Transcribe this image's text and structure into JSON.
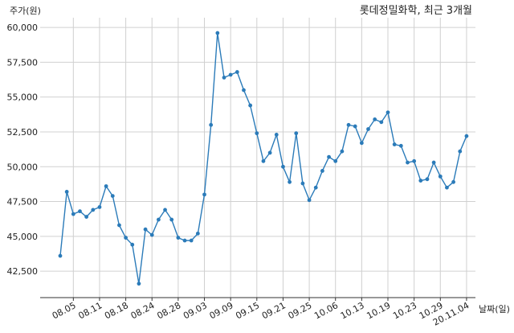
{
  "chart_data": {
    "type": "line",
    "title": "롯데정밀화학, 최근 3개월",
    "ylabel": "주가(원)",
    "xlabel": "날짜(일)",
    "ylim": [
      40600,
      60700
    ],
    "y_ticks": [
      42500,
      45000,
      47500,
      50000,
      52500,
      55000,
      57500,
      60000
    ],
    "y_tick_labels": [
      "42,500",
      "45,000",
      "47,500",
      "50,000",
      "52,500",
      "55,000",
      "57,500",
      "60,000"
    ],
    "x_tick_labels": [
      "08.05",
      "08.11",
      "08.18",
      "08.24",
      "08.28",
      "09.03",
      "09.09",
      "09.15",
      "09.21",
      "09.25",
      "10.06",
      "10.13",
      "10.19",
      "10.23",
      "10.29",
      "20.11.04"
    ],
    "x_tick_index": [
      2,
      6,
      10,
      14,
      18,
      22,
      26,
      30,
      34,
      38,
      42,
      46,
      50,
      54,
      58,
      62
    ],
    "grid": true,
    "color": "#2b7bb9",
    "series": [
      {
        "values": [
          43600,
          48200,
          46600,
          46800,
          46400,
          46900,
          47100,
          48600,
          47900,
          45800,
          44900,
          44400,
          41600,
          45500,
          45100,
          46200,
          46900,
          46200,
          44900,
          44700,
          44700,
          45200,
          48000,
          53000,
          59600,
          56400,
          56600,
          56800,
          55500,
          54400,
          52400,
          50400,
          51000,
          52300,
          50000,
          48900,
          52400,
          48800,
          47600,
          48500,
          49700,
          50700,
          50400,
          51100,
          53000,
          52900,
          51700,
          52700,
          53400,
          53200,
          53900,
          51600,
          51500,
          50300,
          50400,
          49000,
          49100,
          50300,
          49300,
          48500,
          48900,
          51100,
          52200
        ]
      }
    ]
  }
}
